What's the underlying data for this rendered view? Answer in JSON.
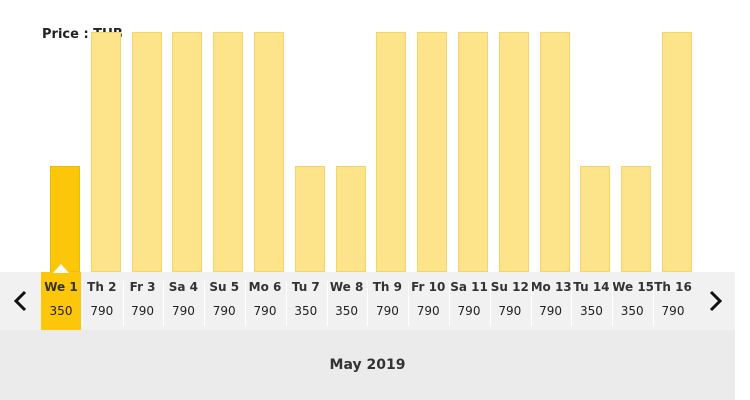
{
  "price_label": "Price : THB",
  "month_label": "May 2019",
  "nav": {
    "prev_icon": "chevron-left-icon",
    "next_icon": "chevron-right-icon"
  },
  "colors": {
    "bar": "#fde48a",
    "bar_selected": "#fcc60b",
    "strip_bg": "#f1f1f1",
    "month_bg": "#ebebeb"
  },
  "selected_index": 0,
  "days": [
    {
      "label": "We 1",
      "price": "350",
      "value": 350
    },
    {
      "label": "Th 2",
      "price": "790",
      "value": 790
    },
    {
      "label": "Fr 3",
      "price": "790",
      "value": 790
    },
    {
      "label": "Sa 4",
      "price": "790",
      "value": 790
    },
    {
      "label": "Su 5",
      "price": "790",
      "value": 790
    },
    {
      "label": "Mo 6",
      "price": "790",
      "value": 790
    },
    {
      "label": "Tu 7",
      "price": "350",
      "value": 350
    },
    {
      "label": "We 8",
      "price": "350",
      "value": 350
    },
    {
      "label": "Th 9",
      "price": "790",
      "value": 790
    },
    {
      "label": "Fr 10",
      "price": "790",
      "value": 790
    },
    {
      "label": "Sa 11",
      "price": "790",
      "value": 790
    },
    {
      "label": "Su 12",
      "price": "790",
      "value": 790
    },
    {
      "label": "Mo 13",
      "price": "790",
      "value": 790
    },
    {
      "label": "Tu 14",
      "price": "350",
      "value": 350
    },
    {
      "label": "We 15",
      "price": "350",
      "value": 350
    },
    {
      "label": "Th 16",
      "price": "790",
      "value": 790
    }
  ]
}
